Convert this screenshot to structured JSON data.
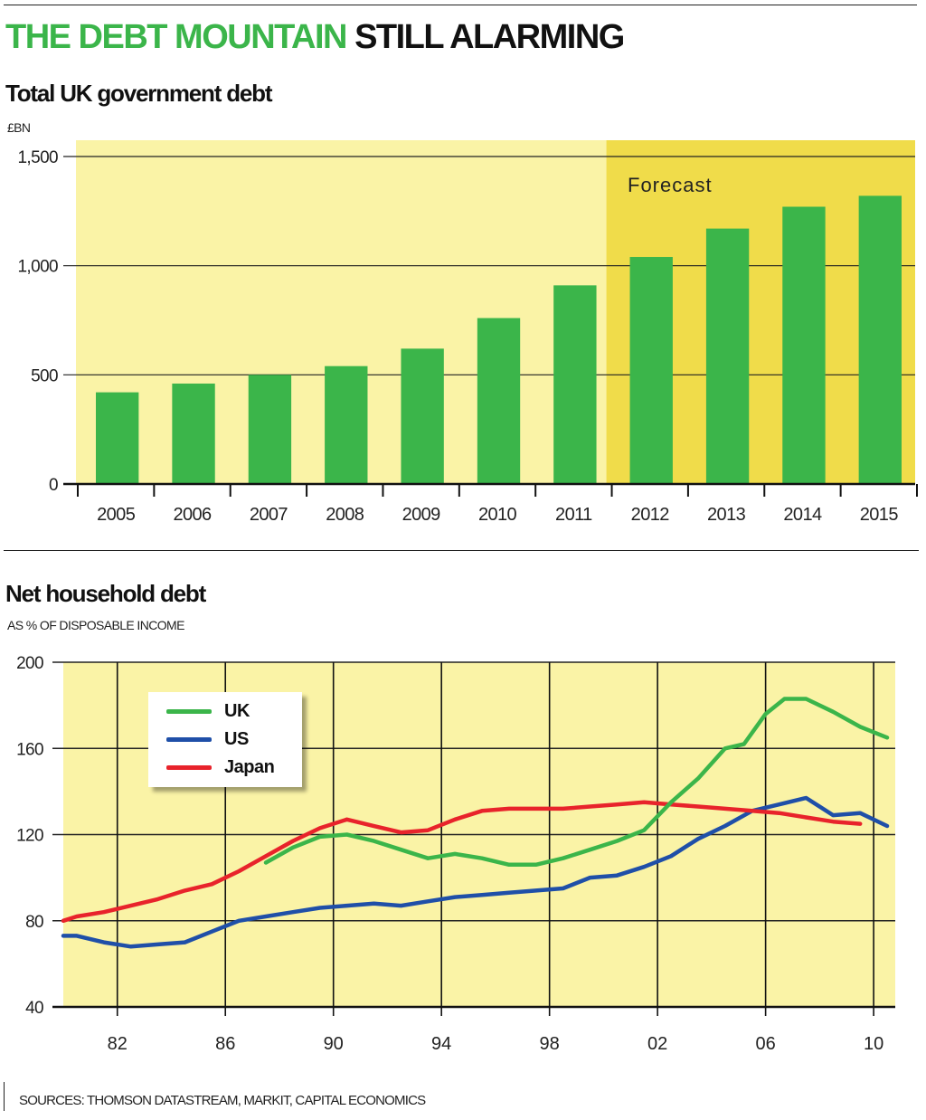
{
  "title_green": "THE DEBT MOUNTAIN",
  "title_black": "STILL ALARMING",
  "source": "SOURCES: THOMSON DATASTREAM, MARKIT, CAPITAL ECONOMICS",
  "colors": {
    "bar": "#3bb54a",
    "background_actual": "#faf3a6",
    "background_forecast": "#f0dc4a",
    "uk": "#3bb54a",
    "us": "#1f4fa8",
    "japan": "#e8232b"
  },
  "chart_data": [
    {
      "type": "bar",
      "title": "Total UK government debt",
      "ylabel": "£BN",
      "ylim": [
        0,
        1500
      ],
      "yticks": [
        0,
        500,
        1000,
        1500
      ],
      "ytick_labels": [
        "0",
        "500",
        "1,000",
        "1,500"
      ],
      "categories": [
        "2005",
        "2006",
        "2007",
        "2008",
        "2009",
        "2010",
        "2011",
        "2012",
        "2013",
        "2014",
        "2015"
      ],
      "values": [
        420,
        460,
        500,
        540,
        620,
        760,
        910,
        1040,
        1170,
        1270,
        1320
      ],
      "annotation": "Forecast",
      "forecast_from": "2012",
      "grid": "horizontal"
    },
    {
      "type": "line",
      "title": "Net household debt",
      "ylabel": "AS % OF DISPOSABLE INCOME",
      "ylim": [
        40,
        200
      ],
      "yticks": [
        40,
        80,
        120,
        160,
        200
      ],
      "xlim": [
        1980,
        2010.8
      ],
      "xticks": [
        1982,
        1986,
        1990,
        1994,
        1998,
        2002,
        2006,
        2010
      ],
      "xtick_labels": [
        "82",
        "86",
        "90",
        "94",
        "98",
        "02",
        "06",
        "10"
      ],
      "legend_position": "top-left",
      "grid": "both",
      "series": [
        {
          "name": "UK",
          "x": [
            1987.5,
            1988.5,
            1989.5,
            1990.5,
            1991.5,
            1992.5,
            1993.5,
            1994.5,
            1995.5,
            1996.5,
            1997.5,
            1998.5,
            1999.5,
            2000.5,
            2001.5,
            2002.5,
            2003.5,
            2004.5,
            2005.2,
            2006,
            2006.7,
            2007.5,
            2008.5,
            2009.5,
            2010.5
          ],
          "y": [
            107,
            114,
            119,
            120,
            117,
            113,
            109,
            111,
            109,
            106,
            106,
            109,
            113,
            117,
            122,
            135,
            146,
            160,
            162,
            176,
            183,
            183,
            177,
            170,
            165
          ]
        },
        {
          "name": "US",
          "x": [
            1980,
            1980.5,
            1981.5,
            1982.5,
            1983.5,
            1984.5,
            1985.5,
            1986.5,
            1987.5,
            1988.5,
            1989.5,
            1990.5,
            1991.5,
            1992.5,
            1993.5,
            1994.5,
            1995.5,
            1996.5,
            1997.5,
            1998.5,
            1999.5,
            2000.5,
            2001.5,
            2002.5,
            2003.5,
            2004.5,
            2005.5,
            2006.5,
            2007.5,
            2008.5,
            2009.5,
            2010.5
          ],
          "y": [
            73,
            73,
            70,
            68,
            69,
            70,
            75,
            80,
            82,
            84,
            86,
            87,
            88,
            87,
            89,
            91,
            92,
            93,
            94,
            95,
            100,
            101,
            105,
            110,
            118,
            124,
            131,
            134,
            137,
            129,
            130,
            124
          ]
        },
        {
          "name": "Japan",
          "x": [
            1980,
            1980.5,
            1981.5,
            1982.5,
            1983.5,
            1984.5,
            1985.5,
            1986.5,
            1987.5,
            1988.5,
            1989.5,
            1990.5,
            1991.5,
            1992.5,
            1993.5,
            1994.5,
            1995.5,
            1996.5,
            1997.5,
            1998.5,
            1999.5,
            2000.5,
            2001.5,
            2002.5,
            2003.5,
            2004.5,
            2005.5,
            2006.5,
            2007.5,
            2008.5,
            2009.5
          ],
          "y": [
            80,
            82,
            84,
            87,
            90,
            94,
            97,
            103,
            110,
            117,
            123,
            127,
            124,
            121,
            122,
            127,
            131,
            132,
            132,
            132,
            133,
            134,
            135,
            134,
            133,
            132,
            131,
            130,
            128,
            126,
            125
          ]
        }
      ]
    }
  ]
}
